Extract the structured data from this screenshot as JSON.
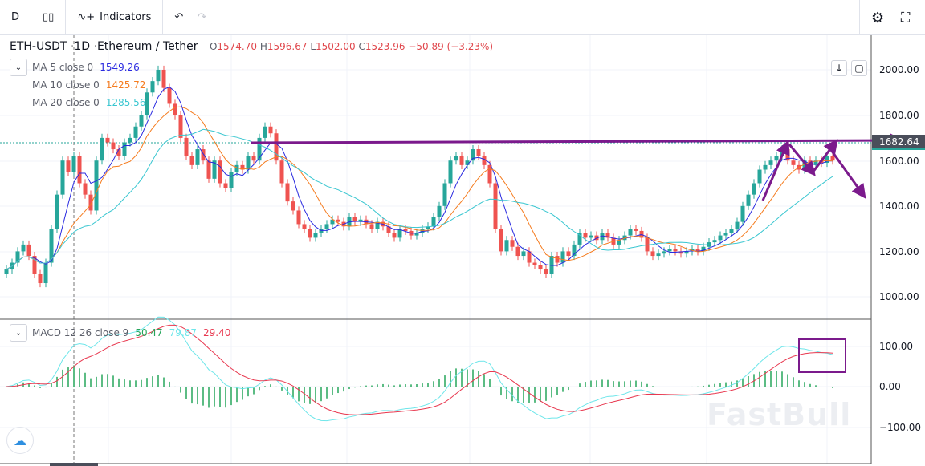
{
  "toolbar": {
    "interval": "D",
    "indicators_label": "Indicators",
    "icons": [
      "candlestick-icon",
      "indicators-icon",
      "undo-icon",
      "redo-icon",
      "settings-icon",
      "fullscreen-icon"
    ]
  },
  "legend": {
    "symbol": "ETH-USDT",
    "interval": "1D",
    "name": "Ethereum / Tether",
    "o_label": "O",
    "open": "1574.70",
    "h_label": "H",
    "high": "1596.67",
    "l_label": "L",
    "low": "1502.00",
    "c_label": "C",
    "close": "1523.96",
    "change": "−50.89 (−3.23%)"
  },
  "ma": [
    {
      "label": "MA 5 close 0",
      "value": "1549.26",
      "color": "#2a2ae0"
    },
    {
      "label": "MA 10 close 0",
      "value": "1425.72",
      "color": "#f57c1f"
    },
    {
      "label": "MA 20 close 0",
      "value": "1285.56",
      "color": "#38c6d0"
    }
  ],
  "macd": {
    "label": "MACD 12 26 close 9",
    "hist": "50.47",
    "macd": "79.87",
    "signal": "29.40",
    "colors": {
      "hist": "#26a65b",
      "macd": "#6ee6ea",
      "signal": "#e8384f"
    }
  },
  "price_axis": [
    "2000.00",
    "1800.00",
    "1600.00",
    "1400.00",
    "1200.00",
    "1000.00"
  ],
  "macd_axis": [
    "100.00",
    "0.00",
    "−100.00"
  ],
  "last_price": "1682.64",
  "watermark": "FastBull",
  "colors": {
    "up": "#26a69a",
    "down": "#ef5350",
    "annotation": "#7b1a8c"
  },
  "chart_data": {
    "type": "candlestick",
    "closes": [
      1120,
      1150,
      1200,
      1230,
      1180,
      1100,
      1060,
      1150,
      1300,
      1450,
      1600,
      1550,
      1620,
      1500,
      1450,
      1380,
      1600,
      1700,
      1680,
      1650,
      1620,
      1680,
      1700,
      1750,
      1800,
      1900,
      1950,
      2000,
      1920,
      1850,
      1800,
      1700,
      1620,
      1580,
      1650,
      1600,
      1520,
      1600,
      1500,
      1480,
      1550,
      1580,
      1560,
      1620,
      1600,
      1700,
      1750,
      1720,
      1600,
      1500,
      1420,
      1380,
      1320,
      1300,
      1260,
      1280,
      1300,
      1320,
      1340,
      1330,
      1310,
      1350,
      1330,
      1340,
      1320,
      1300,
      1330,
      1310,
      1280,
      1260,
      1300,
      1290,
      1270,
      1280,
      1300,
      1310,
      1350,
      1400,
      1500,
      1600,
      1620,
      1580,
      1600,
      1650,
      1620,
      1580,
      1500,
      1300,
      1200,
      1250,
      1220,
      1180,
      1200,
      1150,
      1140,
      1120,
      1100,
      1180,
      1150,
      1200,
      1180,
      1230,
      1280,
      1260,
      1270,
      1250,
      1280,
      1260,
      1230,
      1250,
      1270,
      1300,
      1290,
      1260,
      1200,
      1180,
      1190,
      1200,
      1210,
      1200,
      1190,
      1200,
      1210,
      1200,
      1220,
      1240,
      1250,
      1270,
      1280,
      1300,
      1330,
      1400,
      1450,
      1500,
      1560,
      1580,
      1600,
      1620,
      1650,
      1600,
      1580,
      1560,
      1600,
      1580,
      1600,
      1590,
      1620,
      1600
    ],
    "ylim": [
      1000,
      2000
    ],
    "macd_ylim": [
      -100,
      100
    ]
  }
}
